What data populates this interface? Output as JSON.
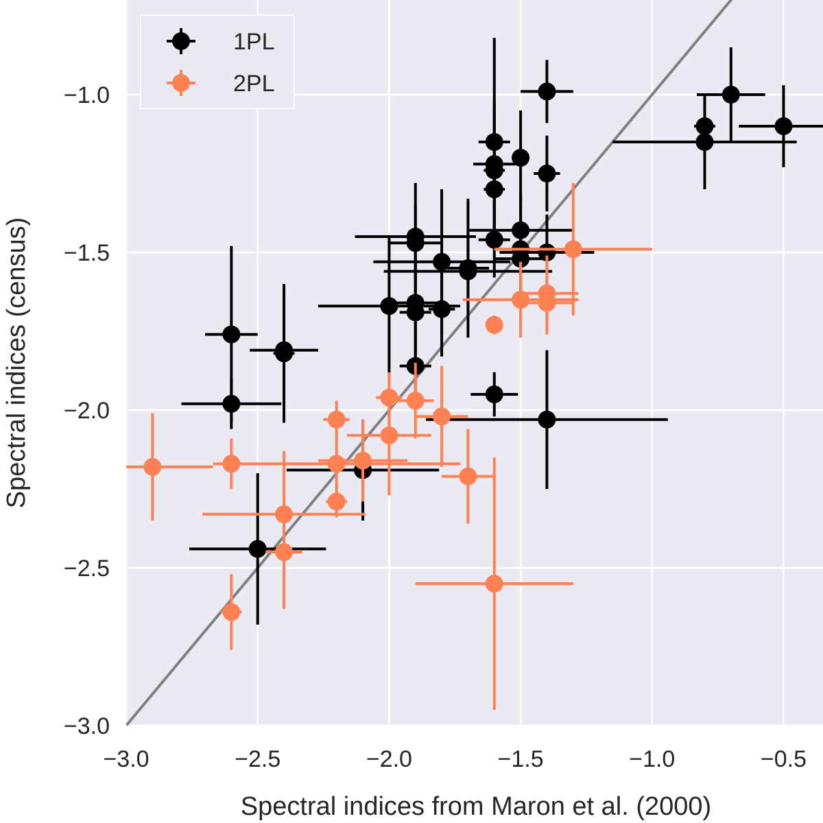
{
  "chart_data": {
    "type": "scatter",
    "title": "",
    "xlabel": "Spectral indices from Maron et al. (2000)",
    "ylabel": "Spectral indices (census)",
    "xlim": [
      -3.0,
      -0.35
    ],
    "ylim": [
      -3.0,
      -0.7
    ],
    "xticks": [
      -3.0,
      -2.5,
      -2.0,
      -1.5,
      -1.0,
      -0.5
    ],
    "xtick_labels": [
      "−3.0",
      "−2.5",
      "−2.0",
      "−1.5",
      "−1.0",
      "−0.5"
    ],
    "yticks": [
      -3.0,
      -2.5,
      -2.0,
      -1.5,
      -1.0
    ],
    "ytick_labels": [
      "−3.0",
      "−2.5",
      "−2.0",
      "−1.5",
      "−1.0"
    ],
    "grid": true,
    "legend_position": "top-left",
    "reference_line": {
      "label": "y = x",
      "color": "#808080"
    },
    "series": [
      {
        "name": "1PL",
        "color": "#000000",
        "points": [
          {
            "x": -1.4,
            "y": -0.99,
            "xerr": 0.1,
            "yerr": 0.1
          },
          {
            "x": -0.7,
            "y": -1.0,
            "xerr": 0.13,
            "yerr": 0.15
          },
          {
            "x": -0.8,
            "y": -1.1,
            "xerr": 0.04,
            "yerr": 0.1
          },
          {
            "x": -0.5,
            "y": -1.1,
            "xerr": 0.17,
            "yerr": 0.13
          },
          {
            "x": -0.8,
            "y": -1.15,
            "xerr": 0.35,
            "yerr": 0.15
          },
          {
            "x": -1.6,
            "y": -1.15,
            "xerr": 0.06,
            "yerr": 0.33
          },
          {
            "x": -1.5,
            "y": -1.2,
            "xerr": 0.03,
            "yerr": 0.15
          },
          {
            "x": -1.6,
            "y": -1.22,
            "xerr": 0.08,
            "yerr": 0.2
          },
          {
            "x": -1.6,
            "y": -1.24,
            "xerr": 0.04,
            "yerr": 0.2
          },
          {
            "x": -1.4,
            "y": -1.25,
            "xerr": 0.05,
            "yerr": 0.12
          },
          {
            "x": -1.6,
            "y": -1.3,
            "xerr": 0.04,
            "yerr": 0.15
          },
          {
            "x": -1.5,
            "y": -1.43,
            "xerr": 0.2,
            "yerr": 0.12
          },
          {
            "x": -1.9,
            "y": -1.45,
            "xerr": 0.23,
            "yerr": 0.17
          },
          {
            "x": -1.6,
            "y": -1.46,
            "xerr": 0.06,
            "yerr": 0.12
          },
          {
            "x": -1.9,
            "y": -1.47,
            "xerr": 0.1,
            "yerr": 0.12
          },
          {
            "x": -1.5,
            "y": -1.49,
            "xerr": 0.1,
            "yerr": 0.17
          },
          {
            "x": -1.4,
            "y": -1.5,
            "xerr": 0.18,
            "yerr": 0.12
          },
          {
            "x": -1.5,
            "y": -1.52,
            "xerr": 0.1,
            "yerr": 0.1
          },
          {
            "x": -1.8,
            "y": -1.53,
            "xerr": 0.26,
            "yerr": 0.23
          },
          {
            "x": -1.7,
            "y": -1.55,
            "xerr": 0.08,
            "yerr": 0.22
          },
          {
            "x": -1.7,
            "y": -1.56,
            "xerr": 0.32,
            "yerr": 0.12
          },
          {
            "x": -1.9,
            "y": -1.66,
            "xerr": 0.1,
            "yerr": 0.22
          },
          {
            "x": -2.0,
            "y": -1.67,
            "xerr": 0.27,
            "yerr": 0.22
          },
          {
            "x": -1.8,
            "y": -1.68,
            "xerr": 0.05,
            "yerr": 0.15
          },
          {
            "x": -1.9,
            "y": -1.69,
            "xerr": 0.06,
            "yerr": 0.13
          },
          {
            "x": -2.6,
            "y": -1.76,
            "xerr": 0.1,
            "yerr": 0.28
          },
          {
            "x": -2.4,
            "y": -1.81,
            "xerr": 0.13,
            "yerr": 0.17
          },
          {
            "x": -2.4,
            "y": -1.82,
            "xerr": 0.04,
            "yerr": 0.22
          },
          {
            "x": -1.9,
            "y": -1.86,
            "xerr": 0.06,
            "yerr": 0.12
          },
          {
            "x": -1.6,
            "y": -1.95,
            "xerr": 0.09,
            "yerr": 0.07
          },
          {
            "x": -2.6,
            "y": -1.98,
            "xerr": 0.19,
            "yerr": 0.08
          },
          {
            "x": -1.4,
            "y": -2.03,
            "xerr": 0.46,
            "yerr": 0.22
          },
          {
            "x": -2.1,
            "y": -2.19,
            "xerr": 0.29,
            "yerr": 0.16
          },
          {
            "x": -2.5,
            "y": -2.44,
            "xerr": 0.26,
            "yerr": 0.24
          }
        ]
      },
      {
        "name": "2PL",
        "color": "#FF8153",
        "points": [
          {
            "x": -1.3,
            "y": -1.49,
            "xerr": 0.3,
            "yerr": 0.21
          },
          {
            "x": -1.4,
            "y": -1.63,
            "xerr": 0.12,
            "yerr": 0.12
          },
          {
            "x": -1.5,
            "y": -1.65,
            "xerr": 0.22,
            "yerr": 0.12
          },
          {
            "x": -1.4,
            "y": -1.66,
            "xerr": 0.1,
            "yerr": 0.1
          },
          {
            "x": -1.6,
            "y": -1.73,
            "xerr": 0.03,
            "yerr": 0.03
          },
          {
            "x": -2.0,
            "y": -1.96,
            "xerr": 0.05,
            "yerr": 0.08
          },
          {
            "x": -1.9,
            "y": -1.97,
            "xerr": 0.07,
            "yerr": 0.12
          },
          {
            "x": -1.8,
            "y": -2.02,
            "xerr": 0.1,
            "yerr": 0.16
          },
          {
            "x": -2.2,
            "y": -2.03,
            "xerr": 0.05,
            "yerr": 0.06
          },
          {
            "x": -2.0,
            "y": -2.08,
            "xerr": 0.16,
            "yerr": 0.19
          },
          {
            "x": -2.1,
            "y": -2.16,
            "xerr": 0.17,
            "yerr": 0.13
          },
          {
            "x": -2.6,
            "y": -2.17,
            "xerr": 0.04,
            "yerr": 0.08
          },
          {
            "x": -2.9,
            "y": -2.18,
            "xerr": 0.23,
            "yerr": 0.17
          },
          {
            "x": -2.2,
            "y": -2.17,
            "xerr": 0.47,
            "yerr": 0.08
          },
          {
            "x": -1.7,
            "y": -2.21,
            "xerr": 0.1,
            "yerr": 0.15
          },
          {
            "x": -2.2,
            "y": -2.29,
            "xerr": 0.04,
            "yerr": 0.05
          },
          {
            "x": -2.4,
            "y": -2.33,
            "xerr": 0.31,
            "yerr": 0.2
          },
          {
            "x": -2.4,
            "y": -2.45,
            "xerr": 0.07,
            "yerr": 0.18
          },
          {
            "x": -1.6,
            "y": -2.55,
            "xerr": 0.3,
            "yerr": 0.4
          },
          {
            "x": -2.6,
            "y": -2.64,
            "xerr": 0.04,
            "yerr": 0.12
          }
        ]
      }
    ]
  }
}
